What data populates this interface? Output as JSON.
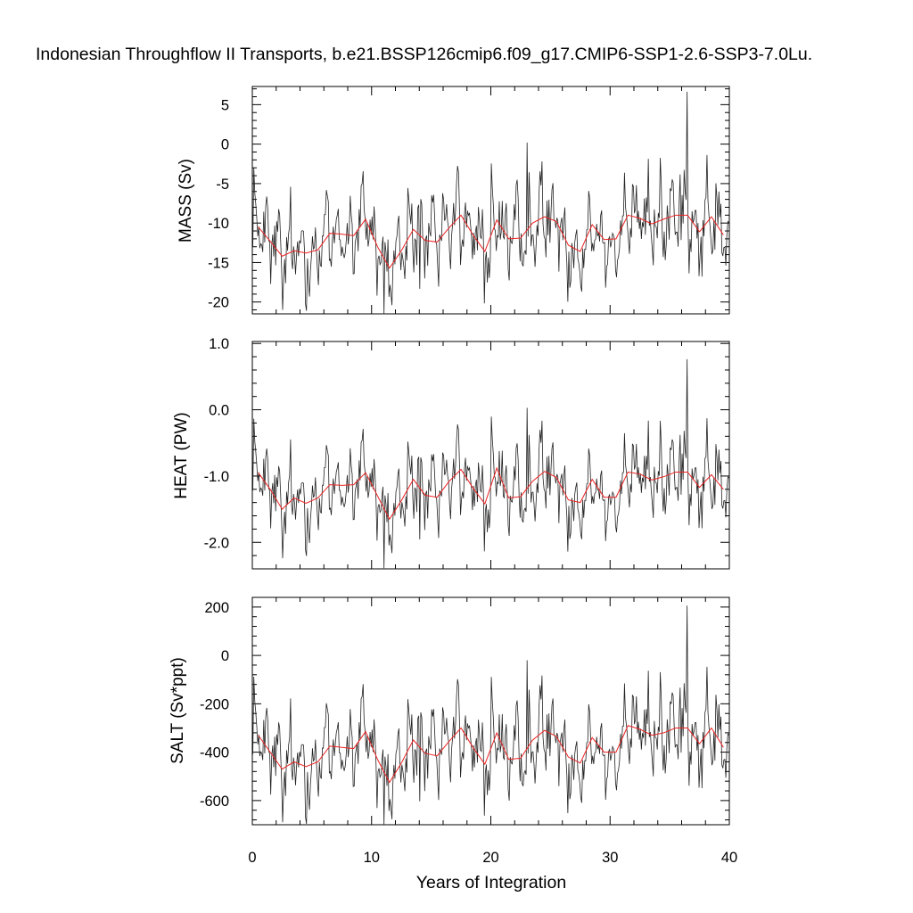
{
  "chart_data": {
    "title": "Indonesian Throughflow II Transports, b.e21.BSSP126cmip6.f09_g17.CMIP6-SSP1-2.6-SSP3-7.0Lu.",
    "type": "line",
    "xlabel": "Years of Integration",
    "xlim": [
      0,
      40
    ],
    "xticks": [
      "0",
      "10",
      "20",
      "30",
      "40"
    ],
    "colors": {
      "raw": "#222222",
      "smooth": "#ee2222"
    },
    "panels": [
      {
        "name": "mass",
        "ylabel": "MASS (Sv)",
        "ylim": [
          -21.5,
          7.3
        ],
        "yticks": [
          5,
          0,
          -5,
          -10,
          -15,
          -20
        ],
        "ytick_labels": [
          "5",
          "0",
          "-5",
          "-10",
          "-15",
          "-20"
        ],
        "annual_means": [
          -10.5,
          -12.3,
          -14.2,
          -13.5,
          -13.8,
          -13.4,
          -11.3,
          -11.4,
          -11.6,
          -9.5,
          -13.0,
          -15.7,
          -13.5,
          -10.8,
          -12.2,
          -12.4,
          -10.6,
          -9.0,
          -11.5,
          -13.6,
          -9.6,
          -12.0,
          -11.9,
          -10.0,
          -9.2,
          -9.8,
          -12.8,
          -13.6,
          -10.2,
          -12.1,
          -12.0,
          -9.0,
          -9.4,
          -10.1,
          -9.5,
          -9.0,
          -9.0,
          -11.1,
          -9.2,
          -11.5
        ]
      },
      {
        "name": "heat",
        "ylabel": "HEAT (PW)",
        "ylim": [
          -2.4,
          1.03
        ],
        "yticks": [
          1.0,
          0.0,
          -1.0,
          -2.0
        ],
        "ytick_labels": [
          "1.0",
          "0.0",
          "-1.0",
          "-2.0"
        ],
        "annual_means": [
          -0.95,
          -1.2,
          -1.5,
          -1.33,
          -1.41,
          -1.33,
          -1.13,
          -1.14,
          -1.13,
          -0.95,
          -1.3,
          -1.65,
          -1.37,
          -1.05,
          -1.29,
          -1.32,
          -1.08,
          -0.9,
          -1.18,
          -1.42,
          -0.88,
          -1.33,
          -1.31,
          -1.08,
          -0.93,
          -1.02,
          -1.36,
          -1.4,
          -1.05,
          -1.32,
          -1.32,
          -0.94,
          -0.97,
          -1.06,
          -1.01,
          -0.94,
          -0.94,
          -1.17,
          -0.98,
          -1.2
        ]
      },
      {
        "name": "salt",
        "ylabel": "SALT (Sv*ppt)",
        "ylim": [
          -700,
          240
        ],
        "yticks": [
          200,
          0,
          -200,
          -400,
          -600
        ],
        "ytick_labels": [
          "200",
          "0",
          "-200",
          "-400",
          "-600"
        ],
        "annual_means": [
          -330,
          -400,
          -470,
          -440,
          -460,
          -440,
          -375,
          -380,
          -385,
          -315,
          -430,
          -525,
          -445,
          -350,
          -405,
          -415,
          -355,
          -300,
          -380,
          -450,
          -320,
          -430,
          -425,
          -350,
          -310,
          -335,
          -420,
          -445,
          -340,
          -400,
          -400,
          -290,
          -305,
          -330,
          -320,
          -300,
          -300,
          -365,
          -300,
          -380
        ]
      }
    ]
  }
}
